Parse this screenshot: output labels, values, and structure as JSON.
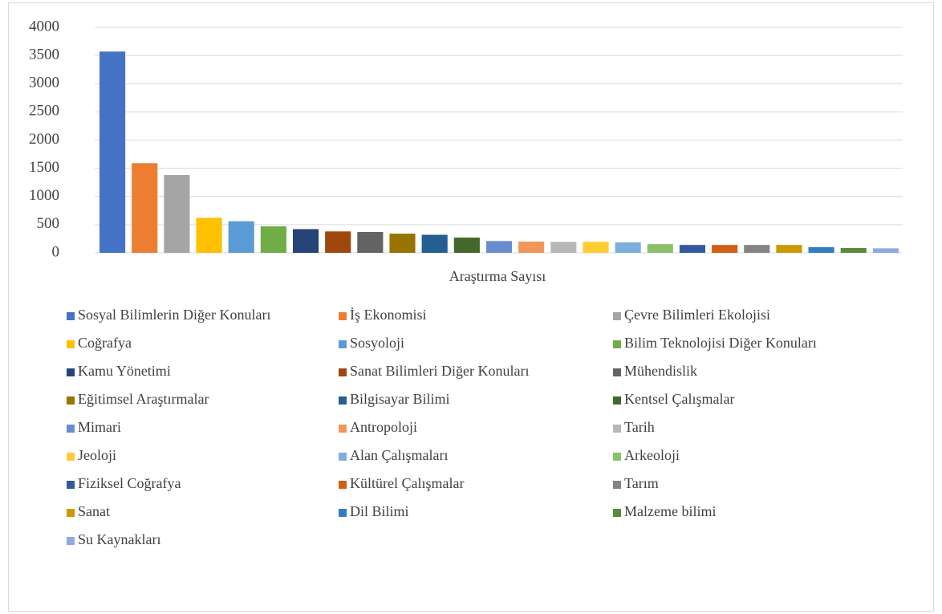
{
  "chart_data": {
    "type": "bar",
    "categories": [
      "Araştırma Sayısı"
    ],
    "ylim": [
      0,
      4000
    ],
    "yticks": [
      0,
      500,
      1000,
      1500,
      2000,
      2500,
      3000,
      3500,
      4000
    ],
    "grid": true,
    "legend": "bottom",
    "series": [
      {
        "name": "Sosyal Bilimlerin Diğer Konuları",
        "color": "#4472c4",
        "values": [
          3570
        ]
      },
      {
        "name": "İş Ekonomisi",
        "color": "#ed7d31",
        "values": [
          1590
        ]
      },
      {
        "name": "Çevre Bilimleri Ekolojisi",
        "color": "#a5a5a5",
        "values": [
          1380
        ]
      },
      {
        "name": "Coğrafya",
        "color": "#ffc000",
        "values": [
          620
        ]
      },
      {
        "name": "Sosyoloji",
        "color": "#5b9bd5",
        "values": [
          560
        ]
      },
      {
        "name": "Bilim Teknolojisi Diğer Konuları",
        "color": "#70ad47",
        "values": [
          470
        ]
      },
      {
        "name": "Kamu Yönetimi",
        "color": "#264478",
        "values": [
          420
        ]
      },
      {
        "name": "Sanat Bilimleri Diğer Konuları",
        "color": "#9e480e",
        "values": [
          380
        ]
      },
      {
        "name": "Mühendislik",
        "color": "#636363",
        "values": [
          370
        ]
      },
      {
        "name": "Eğitimsel Araştırmalar",
        "color": "#997300",
        "values": [
          340
        ]
      },
      {
        "name": "Bilgisayar Bilimi",
        "color": "#255e91",
        "values": [
          320
        ]
      },
      {
        "name": "Kentsel Çalışmalar",
        "color": "#43682b",
        "values": [
          270
        ]
      },
      {
        "name": "Mimari",
        "color": "#698ed0",
        "values": [
          210
        ]
      },
      {
        "name": "Antropoloji",
        "color": "#f1975a",
        "values": [
          200
        ]
      },
      {
        "name": "Tarih",
        "color": "#b7b7b7",
        "values": [
          195
        ]
      },
      {
        "name": "Jeoloji",
        "color": "#ffcd33",
        "values": [
          195
        ]
      },
      {
        "name": "Alan Çalışmaları",
        "color": "#7cafdd",
        "values": [
          185
        ]
      },
      {
        "name": "Arkeoloji",
        "color": "#8cc168",
        "values": [
          155
        ]
      },
      {
        "name": "Fiziksel Coğrafya",
        "color": "#335aa1",
        "values": [
          140
        ]
      },
      {
        "name": "Kültürel Çalışmalar",
        "color": "#d26012",
        "values": [
          140
        ]
      },
      {
        "name": "Tarım",
        "color": "#848484",
        "values": [
          140
        ]
      },
      {
        "name": "Sanat",
        "color": "#cc9a00",
        "values": [
          140
        ]
      },
      {
        "name": "Dil Bilimi",
        "color": "#327dc2",
        "values": [
          100
        ]
      },
      {
        "name": "Malzeme bilimi",
        "color": "#5a8a39",
        "values": [
          85
        ]
      },
      {
        "name": "Su Kaynakları",
        "color": "#8faadc",
        "values": [
          80
        ]
      }
    ]
  }
}
